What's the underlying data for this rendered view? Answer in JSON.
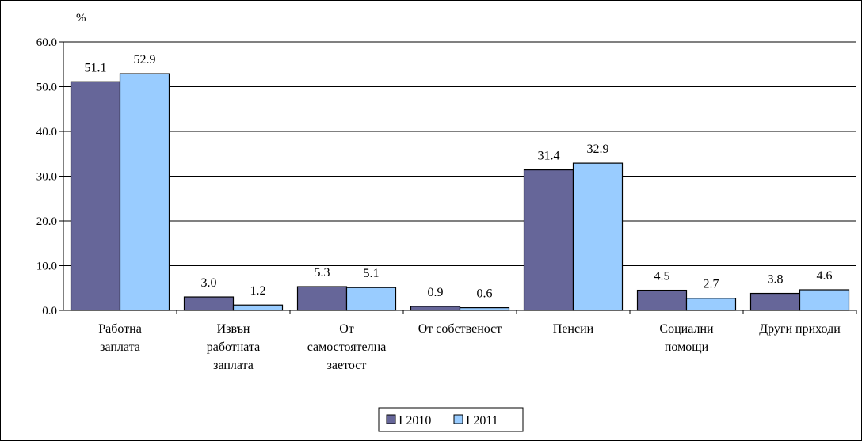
{
  "chart_data": {
    "type": "bar",
    "ylabel": "%",
    "ylim": [
      0,
      60
    ],
    "yticks": [
      "0.0",
      "10.0",
      "20.0",
      "30.0",
      "40.0",
      "50.0",
      "60.0"
    ],
    "grid": true,
    "legend_position": "bottom",
    "categories": [
      [
        "Работна",
        "заплата"
      ],
      [
        "Извън",
        "работната",
        "заплата"
      ],
      [
        "От",
        "самостоятелна",
        "заетост"
      ],
      [
        "От собственост"
      ],
      [
        "Пенсии"
      ],
      [
        "Социални",
        "помощи"
      ],
      [
        "Други приходи"
      ]
    ],
    "series": [
      {
        "name": "I 2010",
        "color": "#666699",
        "values": [
          51.1,
          3.0,
          5.3,
          0.9,
          31.4,
          4.5,
          3.8
        ],
        "labels": [
          "51.1",
          "3.0",
          "5.3",
          "0.9",
          "31.4",
          "4.5",
          "3.8"
        ]
      },
      {
        "name": "I 2011",
        "color": "#99ccff",
        "values": [
          52.9,
          1.2,
          5.1,
          0.6,
          32.9,
          2.7,
          4.6
        ],
        "labels": [
          "52.9",
          "1.2",
          "5.1",
          "0.6",
          "32.9",
          "2.7",
          "4.6"
        ]
      }
    ]
  }
}
